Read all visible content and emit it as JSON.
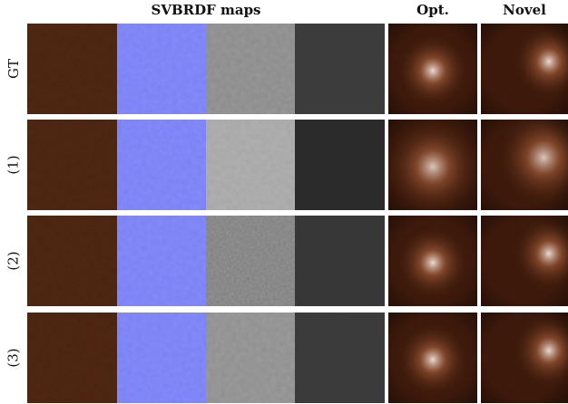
{
  "header": {
    "svbrdf_maps": "SVBRDF maps",
    "opt": "Opt.",
    "novel": "Novel"
  },
  "rows": [
    {
      "label": "GT"
    },
    {
      "label": "(1)"
    },
    {
      "label": "(2)"
    },
    {
      "label": "(3)"
    }
  ],
  "columns": [
    "diffuse-map",
    "normal-map",
    "roughness-map",
    "specular-map",
    "render-opt",
    "render-novel"
  ],
  "colors": {
    "diffuse": "#4a2410",
    "normal": "#7a80f6",
    "roughness_gt": "#8a8a8a",
    "roughness_1": "#a6a6a6",
    "roughness_2": "#7d7d7d",
    "roughness_3": "#8e8e8e",
    "specular_gt": "#3b3b3b",
    "specular_1": "#2a2a2a",
    "specular_2": "#363636",
    "specular_3": "#3a3a3a",
    "render_base": "#3a180a"
  }
}
